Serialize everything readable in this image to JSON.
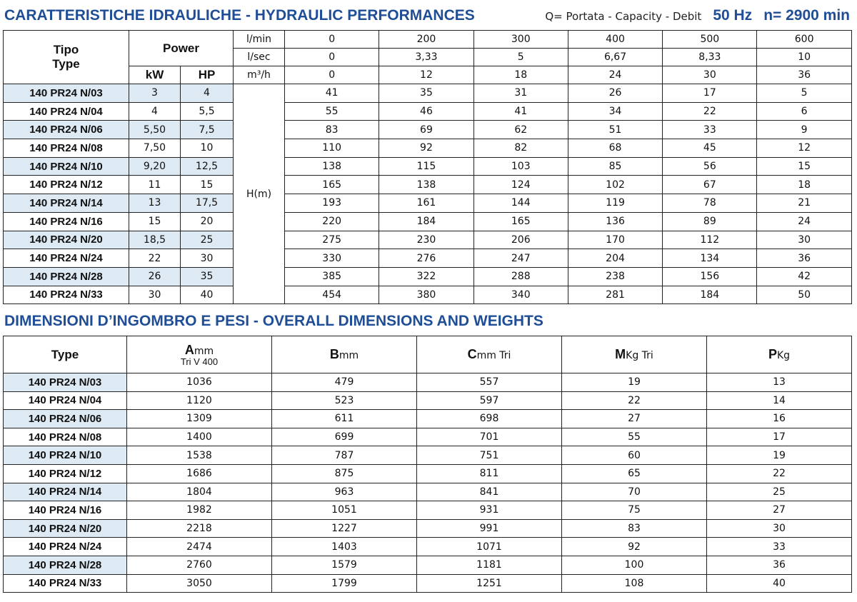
{
  "header1": {
    "title": "CARATTERISTICHE IDRAULICHE - HYDRAULIC PERFORMANCES",
    "note": "Q= Portata - Capacity - Debit",
    "freq": "50 Hz",
    "speed": "n= 2900 min"
  },
  "table1": {
    "tipo": "Tipo",
    "type": "Type",
    "power": "Power",
    "kw": "kW",
    "hp": "HP",
    "hm": "H(m)",
    "flow_rows": [
      [
        "l/min",
        "0",
        "200",
        "300",
        "400",
        "500",
        "600"
      ],
      [
        "l/sec",
        "0",
        "3,33",
        "5",
        "6,67",
        "8,33",
        "10"
      ],
      [
        "m³/h",
        "0",
        "12",
        "18",
        "24",
        "30",
        "36"
      ]
    ],
    "rows": [
      [
        "140 PR24 N/03",
        "3",
        "4",
        "41",
        "35",
        "31",
        "26",
        "17",
        "5"
      ],
      [
        "140 PR24 N/04",
        "4",
        "5,5",
        "55",
        "46",
        "41",
        "34",
        "22",
        "6"
      ],
      [
        "140 PR24 N/06",
        "5,50",
        "7,5",
        "83",
        "69",
        "62",
        "51",
        "33",
        "9"
      ],
      [
        "140 PR24 N/08",
        "7,50",
        "10",
        "110",
        "92",
        "82",
        "68",
        "45",
        "12"
      ],
      [
        "140 PR24 N/10",
        "9,20",
        "12,5",
        "138",
        "115",
        "103",
        "85",
        "56",
        "15"
      ],
      [
        "140 PR24 N/12",
        "11",
        "15",
        "165",
        "138",
        "124",
        "102",
        "67",
        "18"
      ],
      [
        "140 PR24 N/14",
        "13",
        "17,5",
        "193",
        "161",
        "144",
        "119",
        "78",
        "21"
      ],
      [
        "140 PR24 N/16",
        "15",
        "20",
        "220",
        "184",
        "165",
        "136",
        "89",
        "24"
      ],
      [
        "140 PR24 N/20",
        "18,5",
        "25",
        "275",
        "230",
        "206",
        "170",
        "112",
        "30"
      ],
      [
        "140 PR24 N/24",
        "22",
        "30",
        "330",
        "276",
        "247",
        "204",
        "134",
        "36"
      ],
      [
        "140 PR24 N/28",
        "26",
        "35",
        "385",
        "322",
        "288",
        "238",
        "156",
        "42"
      ],
      [
        "140 PR24 N/33",
        "30",
        "40",
        "454",
        "380",
        "340",
        "281",
        "184",
        "50"
      ]
    ]
  },
  "header2": {
    "title": "DIMENSIONI D’INGOMBRO E PESI - OVERALL DIMENSIONS AND WEIGHTS"
  },
  "table2": {
    "type": "Type",
    "columns": [
      {
        "letter": "A",
        "unit": "mm",
        "sub": "Tri V 400"
      },
      {
        "letter": "B",
        "unit": "mm"
      },
      {
        "letter": "C",
        "unit": "mm Tri"
      },
      {
        "letter": "M",
        "unit": "Kg Tri"
      },
      {
        "letter": "P",
        "unit": "Kg"
      }
    ],
    "rows": [
      [
        "140 PR24 N/03",
        "1036",
        "479",
        "557",
        "19",
        "13"
      ],
      [
        "140 PR24 N/04",
        "1120",
        "523",
        "597",
        "22",
        "14"
      ],
      [
        "140 PR24 N/06",
        "1309",
        "611",
        "698",
        "27",
        "16"
      ],
      [
        "140 PR24 N/08",
        "1400",
        "699",
        "701",
        "55",
        "17"
      ],
      [
        "140 PR24 N/10",
        "1538",
        "787",
        "751",
        "60",
        "19"
      ],
      [
        "140 PR24 N/12",
        "1686",
        "875",
        "811",
        "65",
        "22"
      ],
      [
        "140 PR24 N/14",
        "1804",
        "963",
        "841",
        "70",
        "25"
      ],
      [
        "140 PR24 N/16",
        "1982",
        "1051",
        "931",
        "75",
        "27"
      ],
      [
        "140 PR24 N/20",
        "2218",
        "1227",
        "991",
        "83",
        "30"
      ],
      [
        "140 PR24 N/24",
        "2474",
        "1403",
        "1071",
        "92",
        "33"
      ],
      [
        "140 PR24 N/28",
        "2760",
        "1579",
        "1181",
        "100",
        "36"
      ],
      [
        "140 PR24 N/33",
        "3050",
        "1799",
        "1251",
        "108",
        "40"
      ]
    ]
  }
}
